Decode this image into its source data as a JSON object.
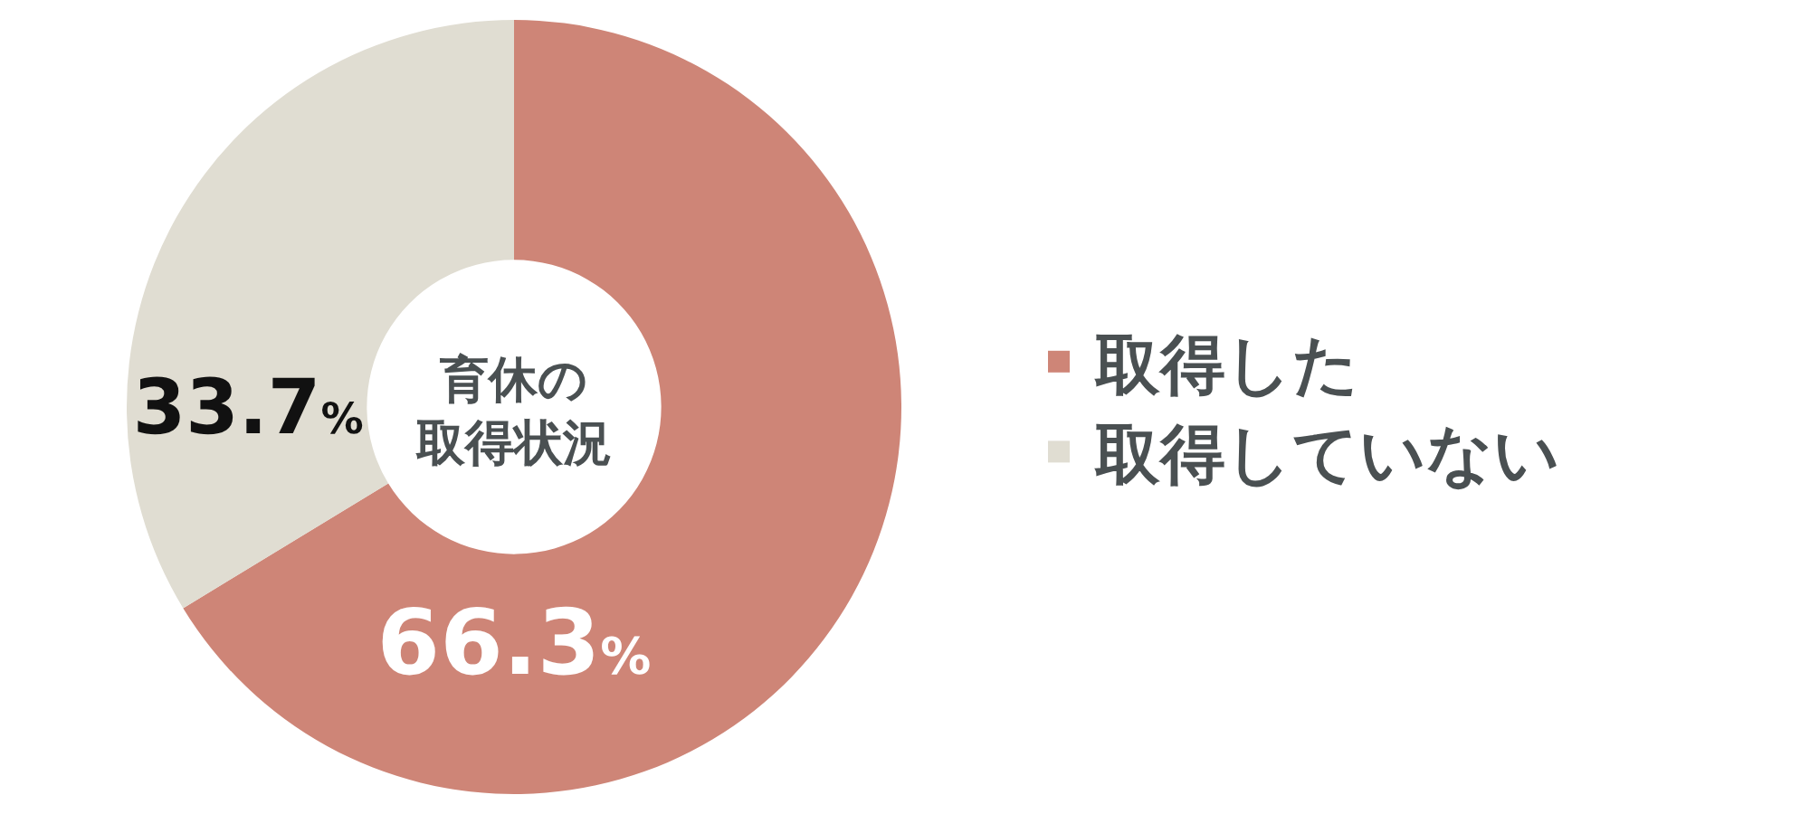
{
  "chart_data": {
    "type": "donut",
    "title": "育休の取得状況",
    "categories": [
      "取得した",
      "取得していない"
    ],
    "values": [
      66.3,
      33.7
    ],
    "colors": [
      "#ce8577",
      "#e0ddd2"
    ],
    "value_labels": [
      "66.3%",
      "33.7%"
    ],
    "legend": "right"
  }
}
